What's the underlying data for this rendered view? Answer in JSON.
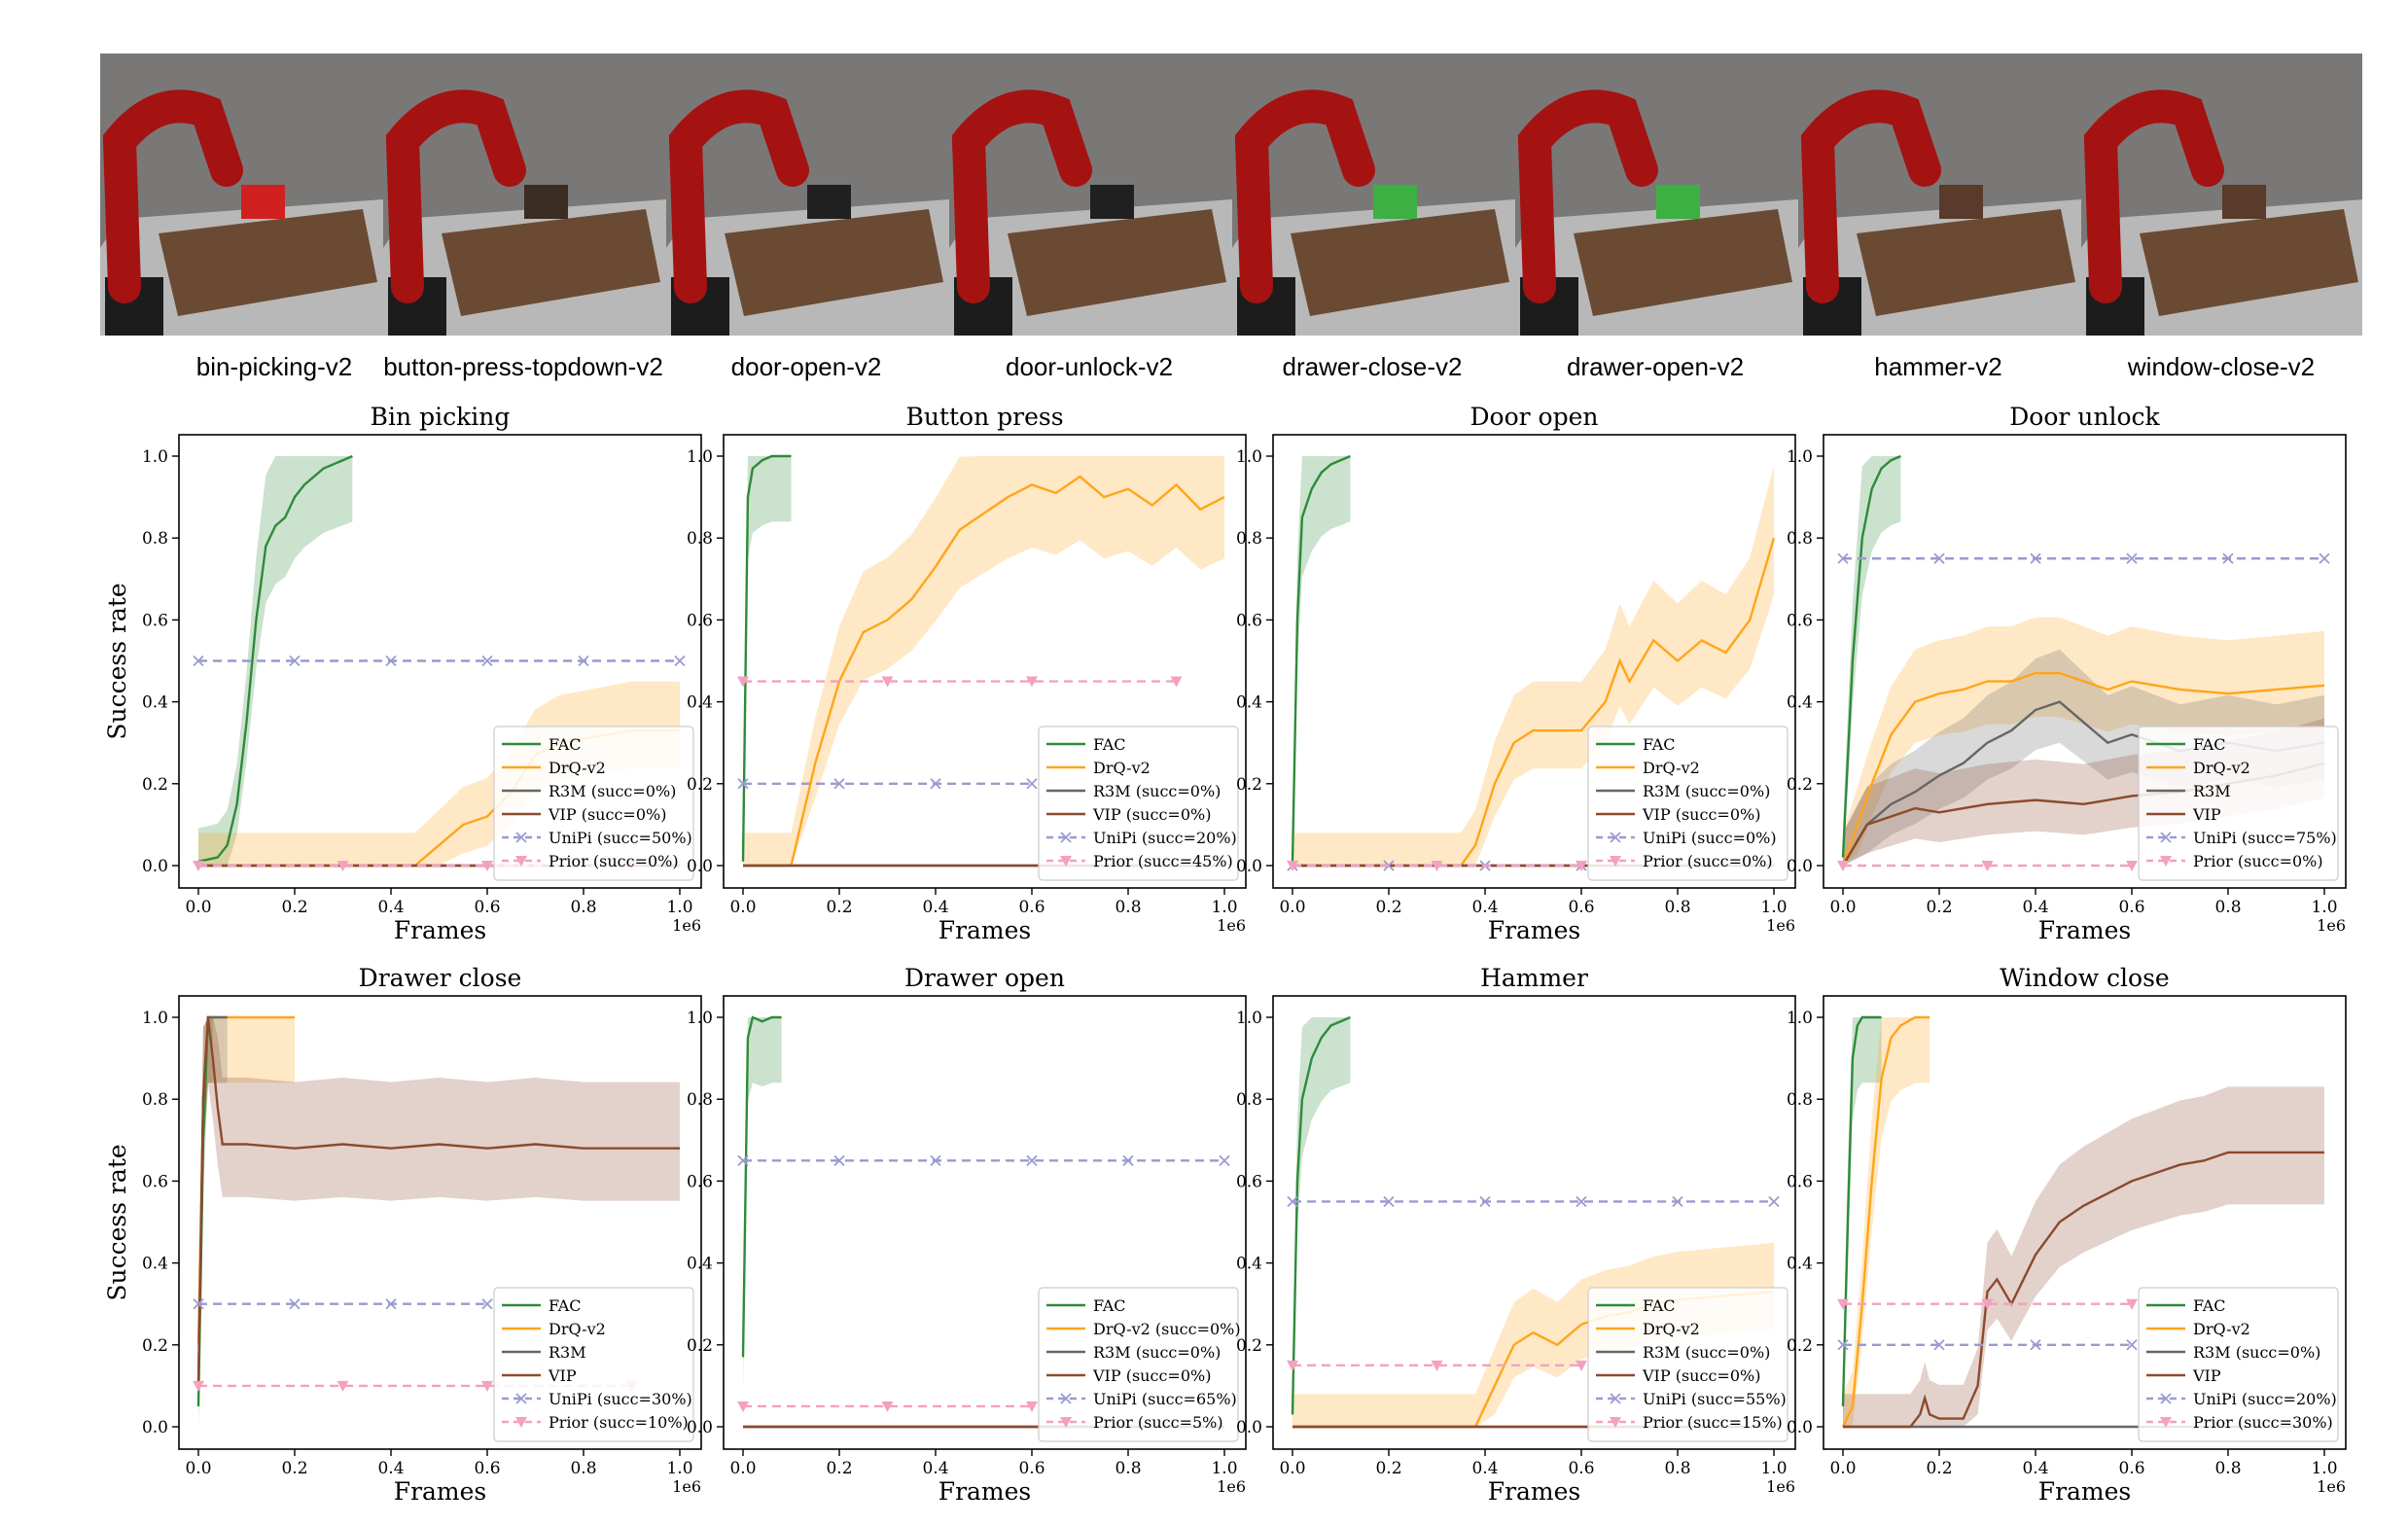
{
  "environments": [
    "bin-picking-v2",
    "button-press-topdown-v2",
    "door-open-v2",
    "door-unlock-v2",
    "drawer-close-v2",
    "drawer-open-v2",
    "hammer-v2",
    "window-close-v2"
  ],
  "colors": {
    "FAC": "#2e8b3a",
    "DrQ-v2": "#ffa51a",
    "R3M": "#666666",
    "VIP": "#8b4a2e",
    "UniPi": "#9a9ad0",
    "Prior": "#f4a0c0"
  },
  "axis": {
    "xlabel": "Frames",
    "ylabel": "Success rate",
    "xscale": "1e6",
    "xticks": [
      "0.0",
      "0.2",
      "0.4",
      "0.6",
      "0.8",
      "1.0"
    ],
    "yticks": [
      "0.0",
      "0.2",
      "0.4",
      "0.6",
      "0.8",
      "1.0"
    ]
  },
  "chart_data": [
    {
      "type": "line",
      "title": "Bin picking",
      "xlim": [
        0,
        1000000
      ],
      "ylim": [
        0,
        1
      ],
      "legend": "lower-right",
      "series": [
        {
          "name": "FAC",
          "x": [
            0,
            40000,
            60000,
            80000,
            100000,
            120000,
            140000,
            160000,
            180000,
            200000,
            220000,
            240000,
            260000,
            280000,
            300000,
            320000
          ],
          "y": [
            0.01,
            0.02,
            0.05,
            0.15,
            0.35,
            0.6,
            0.78,
            0.83,
            0.85,
            0.9,
            0.93,
            0.95,
            0.97,
            0.98,
            0.99,
            1.0
          ]
        },
        {
          "name": "DrQ-v2",
          "x": [
            0,
            450000,
            500000,
            550000,
            600000,
            650000,
            700000,
            750000,
            800000,
            850000,
            900000,
            1000000
          ],
          "y": [
            0,
            0,
            0.05,
            0.1,
            0.12,
            0.18,
            0.27,
            0.3,
            0.31,
            0.32,
            0.33,
            0.33
          ]
        },
        {
          "name": "R3M (succ=0%)",
          "x": [
            0,
            1000000
          ],
          "y": [
            0,
            0
          ]
        },
        {
          "name": "VIP (succ=0%)",
          "x": [
            0,
            1000000
          ],
          "y": [
            0,
            0
          ]
        },
        {
          "name": "UniPi (succ=50%)",
          "x": [
            0,
            200000,
            400000,
            600000,
            800000,
            1000000
          ],
          "y": [
            0.5,
            0.5,
            0.5,
            0.5,
            0.5,
            0.5
          ]
        },
        {
          "name": "Prior (succ=0%)",
          "x": [
            0,
            300000,
            600000,
            900000
          ],
          "y": [
            0,
            0,
            0,
            0
          ]
        }
      ]
    },
    {
      "type": "line",
      "title": "Button press",
      "xlim": [
        0,
        1000000
      ],
      "ylim": [
        0,
        1
      ],
      "legend": "lower-right",
      "series": [
        {
          "name": "FAC",
          "x": [
            0,
            10000,
            20000,
            40000,
            60000,
            80000,
            100000
          ],
          "y": [
            0.01,
            0.9,
            0.97,
            0.99,
            1.0,
            1.0,
            1.0
          ]
        },
        {
          "name": "DrQ-v2",
          "x": [
            0,
            100000,
            150000,
            200000,
            250000,
            300000,
            350000,
            400000,
            450000,
            500000,
            550000,
            600000,
            650000,
            700000,
            750000,
            800000,
            850000,
            900000,
            950000,
            1000000
          ],
          "y": [
            0,
            0,
            0.25,
            0.45,
            0.57,
            0.6,
            0.65,
            0.73,
            0.82,
            0.86,
            0.9,
            0.93,
            0.91,
            0.95,
            0.9,
            0.92,
            0.88,
            0.93,
            0.87,
            0.9
          ]
        },
        {
          "name": "R3M (succ=0%)",
          "x": [
            0,
            1000000
          ],
          "y": [
            0,
            0
          ]
        },
        {
          "name": "VIP (succ=0%)",
          "x": [
            0,
            1000000
          ],
          "y": [
            0,
            0
          ]
        },
        {
          "name": "UniPi (succ=20%)",
          "x": [
            0,
            200000,
            400000,
            600000
          ],
          "y": [
            0.2,
            0.2,
            0.2,
            0.2
          ]
        },
        {
          "name": "Prior (succ=45%)",
          "x": [
            0,
            300000,
            600000,
            900000
          ],
          "y": [
            0.45,
            0.45,
            0.45,
            0.45
          ]
        }
      ]
    },
    {
      "type": "line",
      "title": "Door open",
      "xlim": [
        0,
        1000000
      ],
      "ylim": [
        0,
        1
      ],
      "legend": "lower-right",
      "series": [
        {
          "name": "FAC",
          "x": [
            0,
            10000,
            20000,
            40000,
            60000,
            80000,
            100000,
            120000
          ],
          "y": [
            0.01,
            0.6,
            0.85,
            0.92,
            0.96,
            0.98,
            0.99,
            1.0
          ]
        },
        {
          "name": "DrQ-v2",
          "x": [
            0,
            350000,
            380000,
            420000,
            460000,
            500000,
            550000,
            600000,
            650000,
            680000,
            700000,
            750000,
            800000,
            850000,
            900000,
            950000,
            1000000
          ],
          "y": [
            0,
            0,
            0.05,
            0.2,
            0.3,
            0.33,
            0.33,
            0.33,
            0.4,
            0.5,
            0.45,
            0.55,
            0.5,
            0.55,
            0.52,
            0.6,
            0.8
          ]
        },
        {
          "name": "R3M (succ=0%)",
          "x": [
            0,
            1000000
          ],
          "y": [
            0,
            0
          ]
        },
        {
          "name": "VIP (succ=0%)",
          "x": [
            0,
            1000000
          ],
          "y": [
            0,
            0
          ]
        },
        {
          "name": "UniPi (succ=0%)",
          "x": [
            0,
            200000,
            400000,
            600000
          ],
          "y": [
            0,
            0,
            0,
            0
          ]
        },
        {
          "name": "Prior (succ=0%)",
          "x": [
            0,
            300000,
            600000
          ],
          "y": [
            0,
            0,
            0
          ]
        }
      ]
    },
    {
      "type": "line",
      "title": "Door unlock",
      "xlim": [
        0,
        1000000
      ],
      "ylim": [
        0,
        1
      ],
      "legend": "lower-right",
      "series": [
        {
          "name": "FAC",
          "x": [
            0,
            20000,
            40000,
            60000,
            80000,
            100000,
            120000
          ],
          "y": [
            0.02,
            0.5,
            0.8,
            0.92,
            0.97,
            0.99,
            1.0
          ]
        },
        {
          "name": "DrQ-v2",
          "x": [
            0,
            30000,
            60000,
            100000,
            150000,
            200000,
            250000,
            300000,
            350000,
            400000,
            450000,
            500000,
            550000,
            600000,
            700000,
            800000,
            900000,
            1000000
          ],
          "y": [
            0,
            0.1,
            0.2,
            0.32,
            0.4,
            0.42,
            0.43,
            0.45,
            0.45,
            0.47,
            0.47,
            0.45,
            0.43,
            0.45,
            0.43,
            0.42,
            0.43,
            0.44
          ]
        },
        {
          "name": "R3M",
          "x": [
            0,
            50000,
            100000,
            150000,
            200000,
            250000,
            300000,
            350000,
            400000,
            450000,
            500000,
            550000,
            600000,
            700000,
            800000,
            900000,
            1000000
          ],
          "y": [
            0,
            0.1,
            0.15,
            0.18,
            0.22,
            0.25,
            0.3,
            0.33,
            0.38,
            0.4,
            0.35,
            0.3,
            0.32,
            0.28,
            0.3,
            0.28,
            0.3
          ]
        },
        {
          "name": "VIP",
          "x": [
            0,
            50000,
            100000,
            150000,
            200000,
            300000,
            400000,
            500000,
            600000,
            700000,
            800000,
            900000,
            1000000
          ],
          "y": [
            0,
            0.1,
            0.12,
            0.14,
            0.13,
            0.15,
            0.16,
            0.15,
            0.17,
            0.18,
            0.2,
            0.22,
            0.25
          ]
        },
        {
          "name": "UniPi (succ=75%)",
          "x": [
            0,
            200000,
            400000,
            600000,
            800000,
            1000000
          ],
          "y": [
            0.75,
            0.75,
            0.75,
            0.75,
            0.75,
            0.75
          ]
        },
        {
          "name": "Prior (succ=0%)",
          "x": [
            0,
            300000,
            600000
          ],
          "y": [
            0,
            0,
            0
          ]
        }
      ]
    },
    {
      "type": "line",
      "title": "Drawer close",
      "xlim": [
        0,
        1000000
      ],
      "ylim": [
        0,
        1
      ],
      "legend": "lower-right",
      "series": [
        {
          "name": "FAC",
          "x": [
            0,
            10000,
            20000,
            30000
          ],
          "y": [
            0.05,
            0.7,
            1.0,
            1.0
          ]
        },
        {
          "name": "DrQ-v2",
          "x": [
            0,
            10000,
            20000,
            40000,
            200000
          ],
          "y": [
            0.2,
            0.8,
            1.0,
            1.0,
            1.0
          ]
        },
        {
          "name": "R3M",
          "x": [
            0,
            10000,
            20000,
            40000,
            60000
          ],
          "y": [
            0.1,
            0.8,
            1.0,
            1.0,
            1.0
          ]
        },
        {
          "name": "VIP",
          "x": [
            0,
            10000,
            20000,
            30000,
            40000,
            50000,
            100000,
            200000,
            300000,
            400000,
            500000,
            600000,
            700000,
            800000,
            900000,
            1000000
          ],
          "y": [
            0.1,
            0.8,
            1.0,
            0.9,
            0.78,
            0.69,
            0.69,
            0.68,
            0.69,
            0.68,
            0.69,
            0.68,
            0.69,
            0.68,
            0.68,
            0.68
          ]
        },
        {
          "name": "UniPi (succ=30%)",
          "x": [
            0,
            200000,
            400000,
            600000
          ],
          "y": [
            0.3,
            0.3,
            0.3,
            0.3
          ]
        },
        {
          "name": "Prior (succ=10%)",
          "x": [
            0,
            300000,
            600000,
            900000
          ],
          "y": [
            0.1,
            0.1,
            0.1,
            0.1
          ]
        }
      ]
    },
    {
      "type": "line",
      "title": "Drawer open",
      "xlim": [
        0,
        1000000
      ],
      "ylim": [
        0,
        1
      ],
      "legend": "lower-right",
      "series": [
        {
          "name": "FAC",
          "x": [
            0,
            10000,
            20000,
            40000,
            60000,
            80000
          ],
          "y": [
            0.17,
            0.95,
            1.0,
            0.99,
            1.0,
            1.0
          ]
        },
        {
          "name": "DrQ-v2 (succ=0%)",
          "x": [
            0,
            1000000
          ],
          "y": [
            0,
            0
          ]
        },
        {
          "name": "R3M (succ=0%)",
          "x": [
            0,
            1000000
          ],
          "y": [
            0,
            0
          ]
        },
        {
          "name": "VIP (succ=0%)",
          "x": [
            0,
            1000000
          ],
          "y": [
            0,
            0
          ]
        },
        {
          "name": "UniPi (succ=65%)",
          "x": [
            0,
            200000,
            400000,
            600000,
            800000,
            1000000
          ],
          "y": [
            0.65,
            0.65,
            0.65,
            0.65,
            0.65,
            0.65
          ]
        },
        {
          "name": "Prior (succ=5%)",
          "x": [
            0,
            300000,
            600000
          ],
          "y": [
            0.05,
            0.05,
            0.05
          ]
        }
      ]
    },
    {
      "type": "line",
      "title": "Hammer",
      "xlim": [
        0,
        1000000
      ],
      "ylim": [
        0,
        1
      ],
      "legend": "lower-right",
      "series": [
        {
          "name": "FAC",
          "x": [
            0,
            10000,
            20000,
            40000,
            60000,
            80000,
            100000,
            120000
          ],
          "y": [
            0.03,
            0.6,
            0.8,
            0.9,
            0.95,
            0.98,
            0.99,
            1.0
          ]
        },
        {
          "name": "DrQ-v2",
          "x": [
            0,
            380000,
            420000,
            460000,
            500000,
            550000,
            600000,
            650000,
            700000,
            750000,
            800000,
            900000,
            1000000
          ],
          "y": [
            0,
            0,
            0.1,
            0.2,
            0.23,
            0.2,
            0.25,
            0.27,
            0.28,
            0.3,
            0.31,
            0.32,
            0.33
          ]
        },
        {
          "name": "R3M (succ=0%)",
          "x": [
            0,
            1000000
          ],
          "y": [
            0,
            0
          ]
        },
        {
          "name": "VIP (succ=0%)",
          "x": [
            0,
            1000000
          ],
          "y": [
            0,
            0
          ]
        },
        {
          "name": "UniPi (succ=55%)",
          "x": [
            0,
            200000,
            400000,
            600000,
            800000,
            1000000
          ],
          "y": [
            0.55,
            0.55,
            0.55,
            0.55,
            0.55,
            0.55
          ]
        },
        {
          "name": "Prior (succ=15%)",
          "x": [
            0,
            300000,
            600000
          ],
          "y": [
            0.15,
            0.15,
            0.15
          ]
        }
      ]
    },
    {
      "type": "line",
      "title": "Window close",
      "xlim": [
        0,
        1000000
      ],
      "ylim": [
        0,
        1
      ],
      "legend": "lower-right",
      "series": [
        {
          "name": "FAC",
          "x": [
            0,
            10000,
            20000,
            30000,
            40000,
            60000,
            80000
          ],
          "y": [
            0.05,
            0.5,
            0.9,
            0.98,
            1.0,
            1.0,
            1.0
          ]
        },
        {
          "name": "DrQ-v2",
          "x": [
            0,
            20000,
            40000,
            60000,
            80000,
            100000,
            120000,
            150000,
            180000
          ],
          "y": [
            0,
            0.05,
            0.3,
            0.6,
            0.85,
            0.95,
            0.98,
            1.0,
            1.0
          ]
        },
        {
          "name": "R3M (succ=0%)",
          "x": [
            0,
            1000000
          ],
          "y": [
            0,
            0
          ]
        },
        {
          "name": "VIP",
          "x": [
            0,
            140000,
            160000,
            170000,
            180000,
            200000,
            250000,
            280000,
            300000,
            320000,
            350000,
            400000,
            450000,
            500000,
            550000,
            600000,
            650000,
            700000,
            750000,
            800000,
            1000000
          ],
          "y": [
            0,
            0,
            0.03,
            0.07,
            0.03,
            0.02,
            0.02,
            0.1,
            0.33,
            0.36,
            0.3,
            0.42,
            0.5,
            0.54,
            0.57,
            0.6,
            0.62,
            0.64,
            0.65,
            0.67,
            0.67
          ]
        },
        {
          "name": "UniPi (succ=20%)",
          "x": [
            0,
            200000,
            400000,
            600000
          ],
          "y": [
            0.2,
            0.2,
            0.2,
            0.2
          ]
        },
        {
          "name": "Prior (succ=30%)",
          "x": [
            0,
            300000,
            600000
          ],
          "y": [
            0.3,
            0.3,
            0.3
          ]
        }
      ]
    }
  ]
}
